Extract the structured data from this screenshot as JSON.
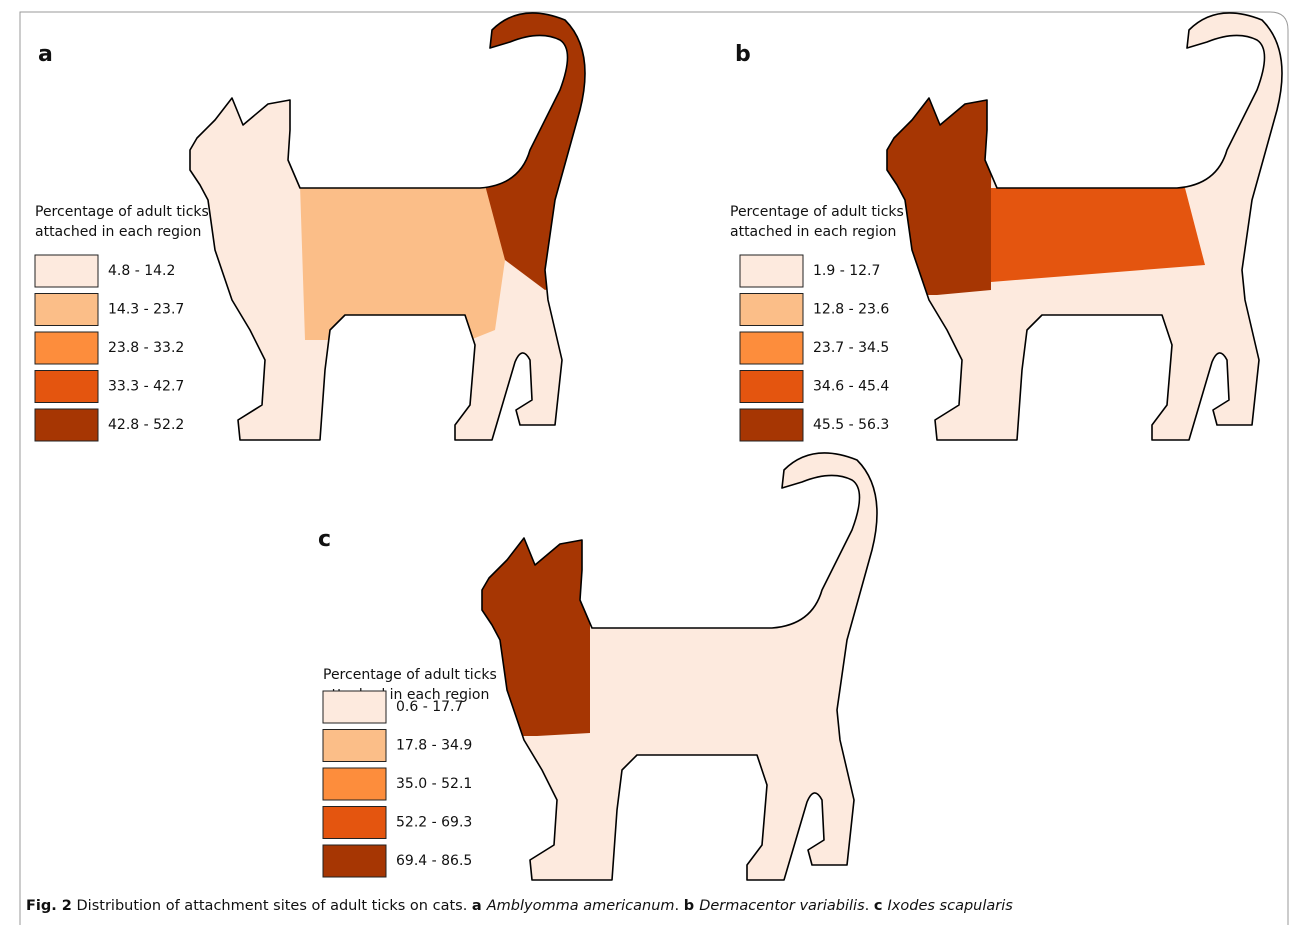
{
  "figure": {
    "panels": [
      {
        "label": "a",
        "legend_title": [
          "Percentage of adult ticks",
          "attached in each region"
        ],
        "legend": [
          {
            "range": "4.8 - 14.2",
            "color": "#fdeade"
          },
          {
            "range": "14.3 - 23.7",
            "color": "#fbbe88"
          },
          {
            "range": "23.8 - 33.2",
            "color": "#fd8d3c"
          },
          {
            "range": "33.3 - 42.7",
            "color": "#e4550f"
          },
          {
            "range": "42.8 - 52.2",
            "color": "#a63603"
          }
        ]
      },
      {
        "label": "b",
        "legend_title": [
          "Percentage of adult ticks",
          "attached in each region"
        ],
        "legend": [
          {
            "range": "1.9 - 12.7",
            "color": "#fdeade"
          },
          {
            "range": "12.8 - 23.6",
            "color": "#fbbe88"
          },
          {
            "range": "23.7 - 34.5",
            "color": "#fd8d3c"
          },
          {
            "range": "34.6 - 45.4",
            "color": "#e4550f"
          },
          {
            "range": "45.5 - 56.3",
            "color": "#a63603"
          }
        ]
      },
      {
        "label": "c",
        "legend_title": [
          "Percentage of adult ticks",
          "attached in each region"
        ],
        "legend": [
          {
            "range": "0.6 - 17.7",
            "color": "#fdeade"
          },
          {
            "range": "17.8 - 34.9",
            "color": "#fbbe88"
          },
          {
            "range": "35.0 - 52.1",
            "color": "#fd8d3c"
          },
          {
            "range": "52.2 - 69.3",
            "color": "#e4550f"
          },
          {
            "range": "69.4 - 86.5",
            "color": "#a63603"
          }
        ]
      }
    ],
    "caption": [
      {
        "text": "Fig. 2",
        "style": "bold"
      },
      {
        "text": "  Distribution of attachment sites of adult ticks on cats. ",
        "style": "normal"
      },
      {
        "text": "a ",
        "style": "bold"
      },
      {
        "text": "Amblyomma americanum",
        "style": "italic"
      },
      {
        "text": ". ",
        "style": "normal"
      },
      {
        "text": "b ",
        "style": "bold"
      },
      {
        "text": "Dermacentor variabilis",
        "style": "italic"
      },
      {
        "text": ". ",
        "style": "normal"
      },
      {
        "text": "c ",
        "style": "bold"
      },
      {
        "text": "Ixodes scapularis",
        "style": "italic"
      }
    ]
  }
}
